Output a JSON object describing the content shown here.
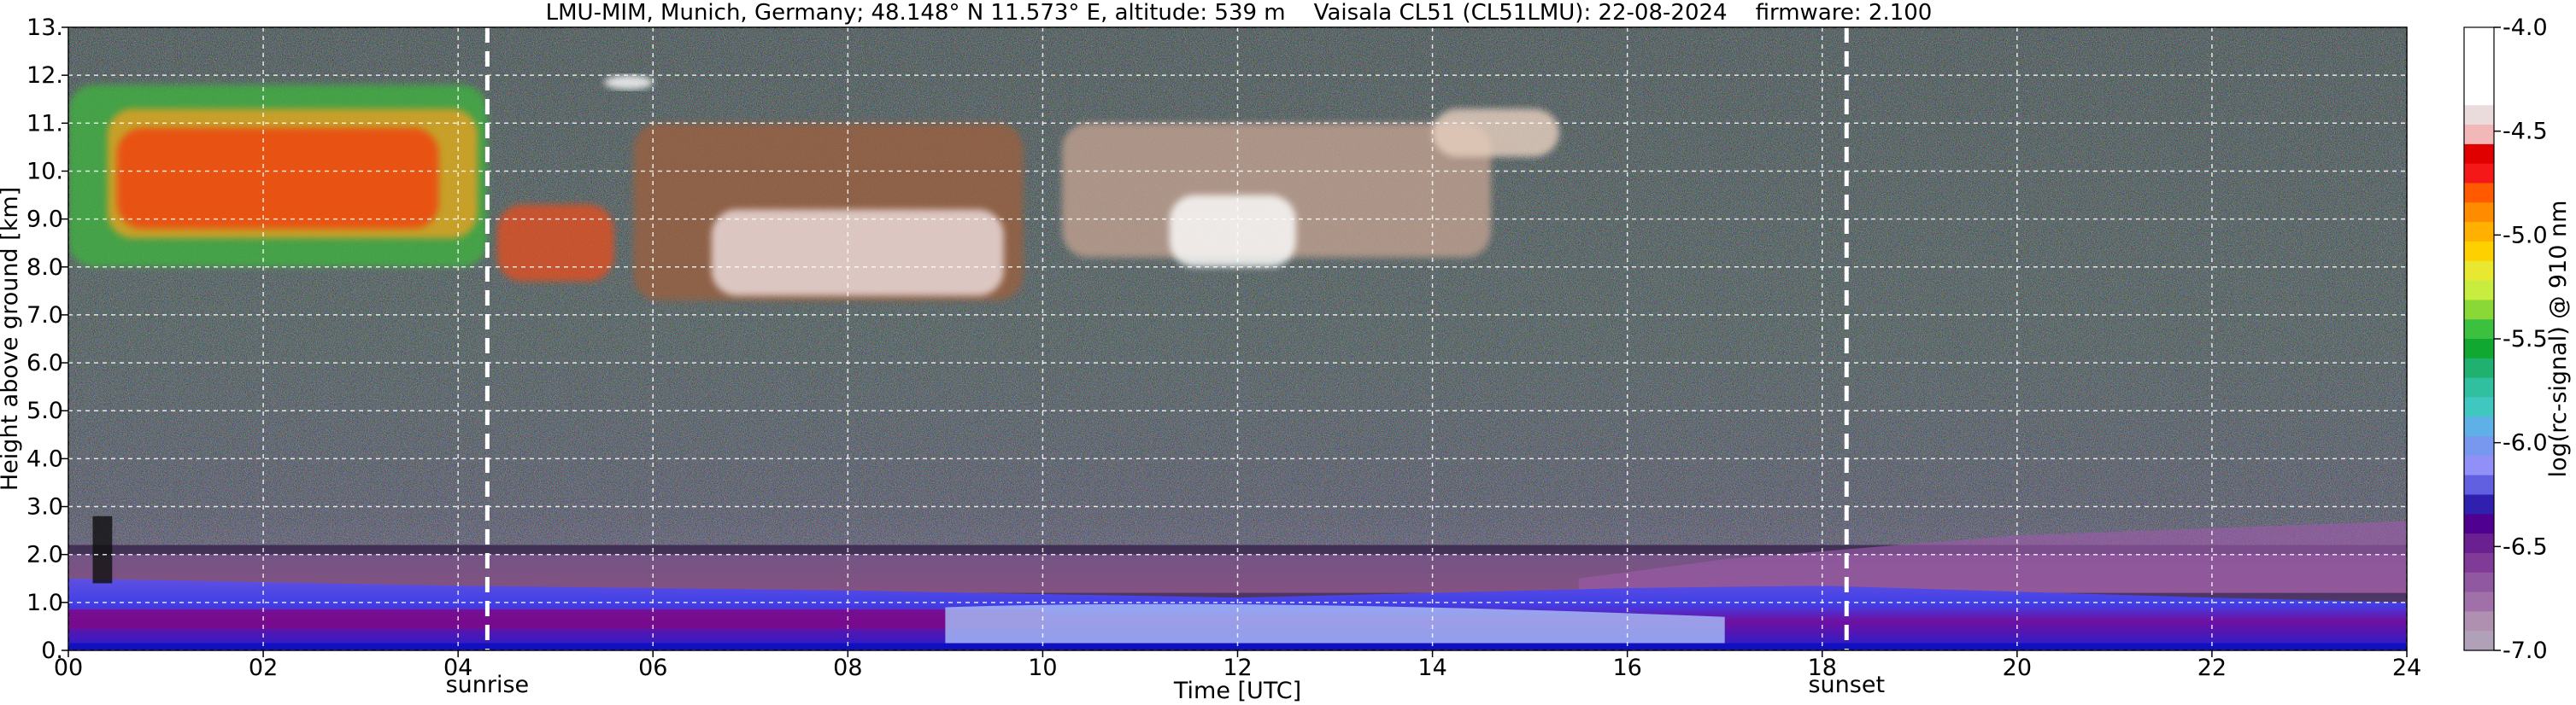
{
  "chart_data": {
    "type": "heatmap",
    "title": "LMU-MIM, Munich, Germany; 48.148° N 11.573° E, altitude: 539 m    Vaisala CL51 (CL51LMU): 22-08-2024    firmware: 2.100",
    "xlabel": "Time [UTC]",
    "ylabel": "Height above ground [km]",
    "colorbar_label": "log(rc-signal) @ 910 nm",
    "xlim": [
      0,
      24
    ],
    "ylim": [
      0,
      13
    ],
    "x_ticks": [
      "00",
      "02",
      "04",
      "06",
      "08",
      "10",
      "12",
      "14",
      "16",
      "18",
      "20",
      "22",
      "24"
    ],
    "y_ticks": [
      "0.",
      "1.0",
      "2.0",
      "3.0",
      "4.0",
      "5.0",
      "6.0",
      "7.0",
      "8.0",
      "9.0",
      "10.",
      "11.",
      "12.",
      "13."
    ],
    "colorbar_range": [
      -7.0,
      -4.0
    ],
    "colorbar_ticks": [
      "-4.0",
      "-4.5",
      "-5.0",
      "-5.5",
      "-6.0",
      "-6.5",
      "-7.0"
    ],
    "colorbar_colors": [
      "#ffffff",
      "#ffffff",
      "#ffffff",
      "#ffffff",
      "#eadcdc",
      "#f2b8b8",
      "#e00000",
      "#f41818",
      "#ff5a00",
      "#ff8c00",
      "#ffb000",
      "#ffd000",
      "#e8e830",
      "#c8ec40",
      "#8ad838",
      "#3cc040",
      "#10a830",
      "#20b070",
      "#30c0a0",
      "#40c8c0",
      "#60b0e8",
      "#7898f0",
      "#9090f8",
      "#6060e0",
      "#3020b0",
      "#500090",
      "#6a2090",
      "#803a98",
      "#9058a0",
      "#a070a8",
      "#b090b0",
      "#b0a0b8"
    ],
    "grid": true,
    "events": [
      {
        "label": "sunrise",
        "x": 4.3
      },
      {
        "label": "sunset",
        "x": 18.25
      }
    ],
    "features": [
      {
        "name": "cirrus cloud layer",
        "x_range": [
          0,
          15.3
        ],
        "y_range": [
          7.2,
          12.0
        ]
      },
      {
        "name": "boundary layer",
        "x_range": [
          0,
          24
        ],
        "y_range": [
          0,
          1.5
        ]
      },
      {
        "name": "residual layer",
        "x_range": [
          16,
          24
        ],
        "y_range": [
          1.5,
          2.6
        ]
      }
    ]
  }
}
